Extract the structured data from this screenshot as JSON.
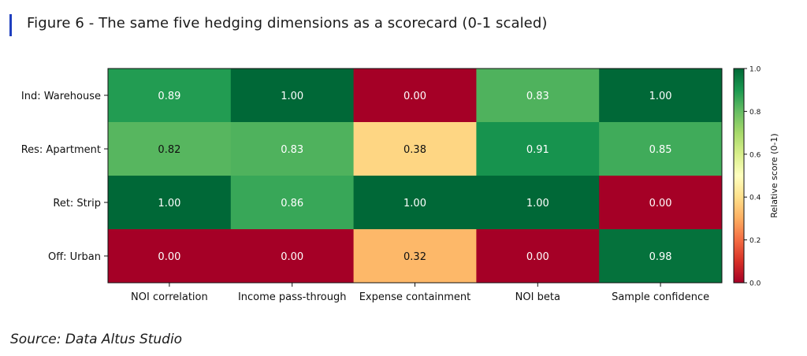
{
  "header": {
    "title": "Figure 6 - The same five hedging dimensions as a scorecard (0-1 scaled)",
    "accent_color": "#1f3fbf"
  },
  "footer": {
    "source": "Source: Data Altus Studio"
  },
  "chart_data": {
    "type": "heatmap",
    "colormap": "RdYlGn",
    "rows": [
      "Ind: Warehouse",
      "Res: Apartment",
      "Ret: Strip",
      "Off: Urban"
    ],
    "columns": [
      "NOI correlation",
      "Income pass-through",
      "Expense containment",
      "NOI beta",
      "Sample confidence"
    ],
    "values": [
      [
        0.89,
        1.0,
        0.0,
        0.83,
        1.0
      ],
      [
        0.82,
        0.83,
        0.38,
        0.91,
        0.85
      ],
      [
        1.0,
        0.86,
        1.0,
        1.0,
        0.0
      ],
      [
        0.0,
        0.0,
        0.32,
        0.0,
        0.98
      ]
    ],
    "value_labels": [
      [
        "0.89",
        "1.00",
        "0.00",
        "0.83",
        "1.00"
      ],
      [
        "0.82",
        "0.83",
        "0.38",
        "0.91",
        "0.85"
      ],
      [
        "1.00",
        "0.86",
        "1.00",
        "1.00",
        "0.00"
      ],
      [
        "0.00",
        "0.00",
        "0.32",
        "0.00",
        "0.98"
      ]
    ],
    "colorbar": {
      "label": "Relative score (0-1)",
      "range": [
        0,
        1
      ],
      "ticks": [
        "0.0",
        "0.2",
        "0.4",
        "0.6",
        "0.8",
        "1.0"
      ]
    }
  }
}
